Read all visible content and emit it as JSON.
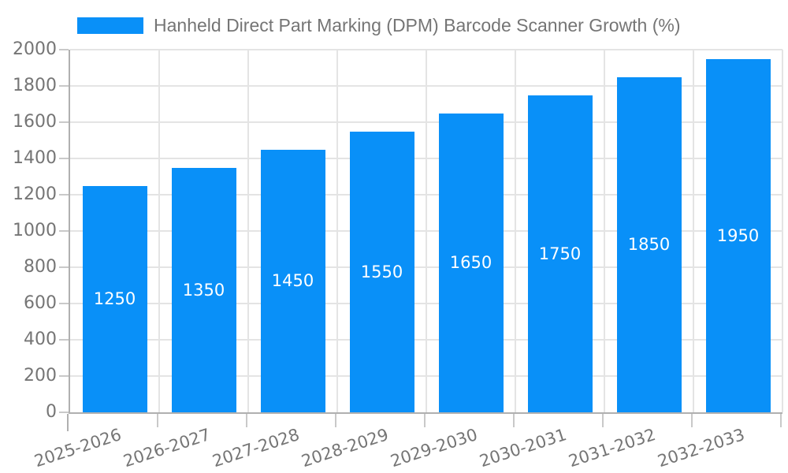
{
  "chart_data": {
    "type": "bar",
    "title": "Hanheld Direct Part Marking (DPM) Barcode Scanner Growth (%)",
    "categories": [
      "2025-2026",
      "2026-2027",
      "2027-2028",
      "2028-2029",
      "2029-2030",
      "2030-2031",
      "2031-2032",
      "2032-2033"
    ],
    "series": [
      {
        "name": "Hanheld Direct Part Marking (DPM) Barcode Scanner Growth (%)",
        "values": [
          1250,
          1350,
          1450,
          1550,
          1650,
          1750,
          1850,
          1950
        ]
      }
    ],
    "value_labels": [
      "1250",
      "1350",
      "1450",
      "1550",
      "1650",
      "1750",
      "1850",
      "1950"
    ],
    "xlabel": "",
    "ylabel": "",
    "ylim": [
      0,
      2000
    ],
    "y_ticks": [
      0,
      200,
      400,
      600,
      800,
      1000,
      1200,
      1400,
      1600,
      1800,
      2000
    ],
    "grid": true,
    "legend_position": "top-left",
    "bar_labels_inside": true
  },
  "colors": {
    "bar": "#0990F8",
    "text": "#757575",
    "axis": "#b0b0b0",
    "tick": "#c9c9c9",
    "grid": "#e4e4e4",
    "value_label": "#ffffff",
    "background": "#ffffff"
  }
}
